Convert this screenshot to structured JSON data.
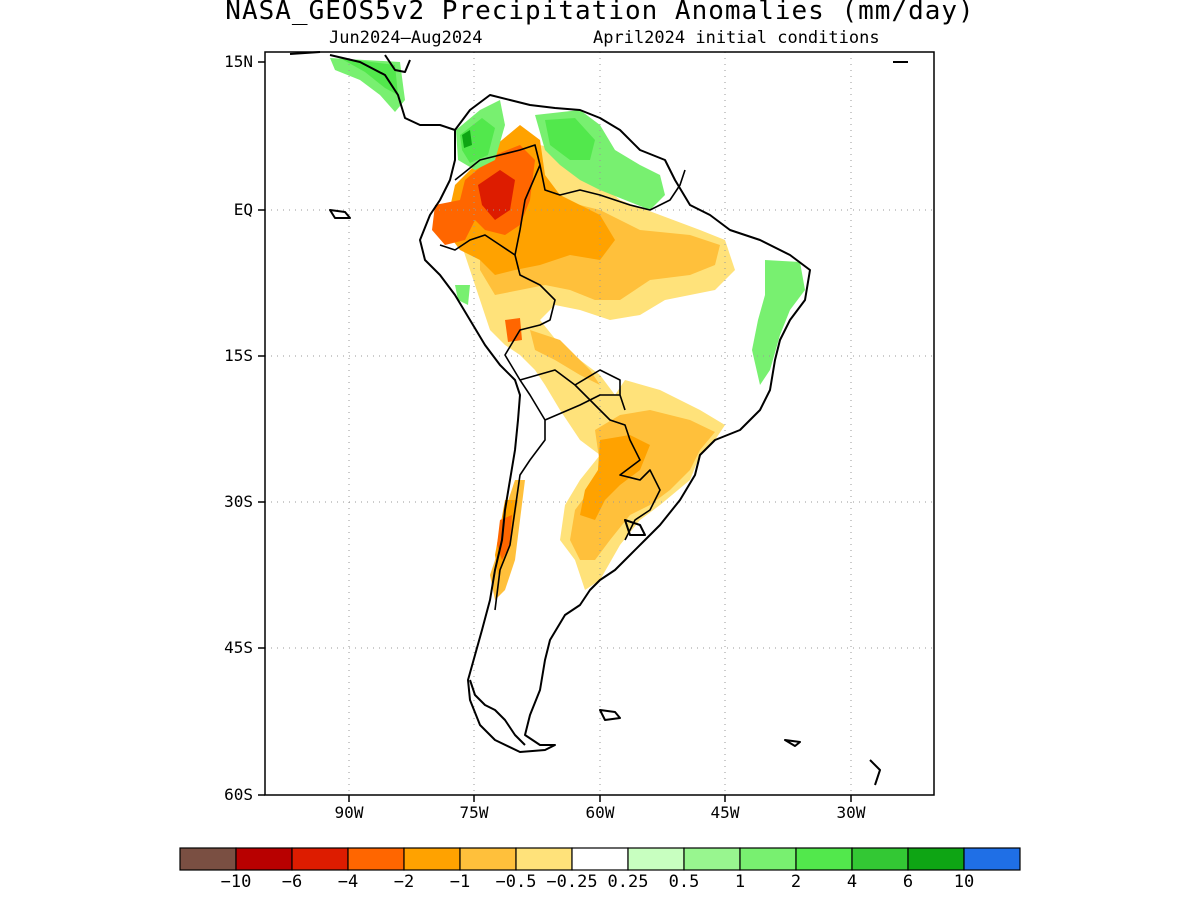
{
  "title": "NASA_GEOS5v2 Precipitation Anomalies (mm/day)",
  "subtitle_period": "Jun2024–Aug2024",
  "subtitle_init": "April2024 initial conditions",
  "map": {
    "region": "South America",
    "lon_range": [
      -100,
      -20
    ],
    "lat_range": [
      -60,
      15
    ],
    "lat_labels": [
      "15N",
      "EQ",
      "15S",
      "30S",
      "45S",
      "60S"
    ],
    "lon_labels": [
      "90W",
      "75W",
      "60W",
      "45W",
      "30W"
    ],
    "grid": "dotted"
  },
  "colorbar": {
    "colors": [
      "#7a4f42",
      "#b80000",
      "#dd1c00",
      "#ff6600",
      "#ffa200",
      "#ffc03b",
      "#ffe27a",
      "#ffffff",
      "#c8ffc0",
      "#98f68f",
      "#78f070",
      "#52e84c",
      "#33c834",
      "#0ea514",
      "#1f6fe6"
    ],
    "tick_labels": [
      "−10",
      "−6",
      "−4",
      "−2",
      "−1",
      "−0.5",
      "−0.25",
      "0.25",
      "0.5",
      "1",
      "2",
      "4",
      "6",
      "10"
    ]
  }
}
